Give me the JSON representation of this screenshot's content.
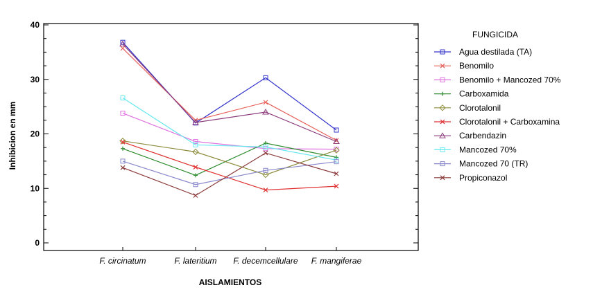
{
  "chart_data": {
    "type": "line",
    "title": "",
    "xlabel": "AISLAMIENTOS",
    "ylabel": "Inhibicion en mm",
    "categories": [
      "F. circinatum",
      "F. lateritium",
      "F. decemcellulare",
      "F. mangiferae"
    ],
    "ylim": [
      0,
      40
    ],
    "yticks": [
      "0",
      "10",
      "20",
      "30",
      "40"
    ],
    "legend_title": "FUNGICIDA",
    "legend_position": "right",
    "grid": false,
    "series": [
      {
        "name": "Agua destilada (TA)",
        "color": "#3333cc",
        "marker": "square",
        "values": [
          36.8,
          22.0,
          30.3,
          20.7
        ]
      },
      {
        "name": "Benomilo",
        "color": "#e8605a",
        "marker": "x",
        "values": [
          35.7,
          22.5,
          25.8,
          18.8
        ]
      },
      {
        "name": "Benomilo + Mancozed 70%",
        "color": "#e070e0",
        "marker": "square",
        "values": [
          23.8,
          18.6,
          17.3,
          17.2
        ]
      },
      {
        "name": "Carboxamida",
        "color": "#2e8b2e",
        "marker": "plus",
        "values": [
          17.3,
          12.4,
          18.3,
          15.7
        ]
      },
      {
        "name": "Clorotalonil",
        "color": "#8c8c3c",
        "marker": "diamond",
        "values": [
          18.7,
          16.7,
          12.5,
          17.0
        ]
      },
      {
        "name": "Clorotalonil + Carboxamina",
        "color": "#e03030",
        "marker": "x",
        "values": [
          18.5,
          13.9,
          9.7,
          10.4
        ]
      },
      {
        "name": "Carbendazin",
        "color": "#8b3a7a",
        "marker": "triangle",
        "values": [
          36.5,
          22.1,
          24.0,
          18.6
        ]
      },
      {
        "name": "Mancozed 70%",
        "color": "#66e8f0",
        "marker": "square",
        "values": [
          26.6,
          18.0,
          17.6,
          15.2
        ]
      },
      {
        "name": "Mancozed 70 (TR)",
        "color": "#8888cc",
        "marker": "square",
        "values": [
          15.0,
          10.7,
          13.3,
          14.9
        ]
      },
      {
        "name": "Propiconazol",
        "color": "#8b3a3a",
        "marker": "x",
        "values": [
          13.8,
          8.7,
          16.5,
          12.7
        ]
      }
    ]
  }
}
